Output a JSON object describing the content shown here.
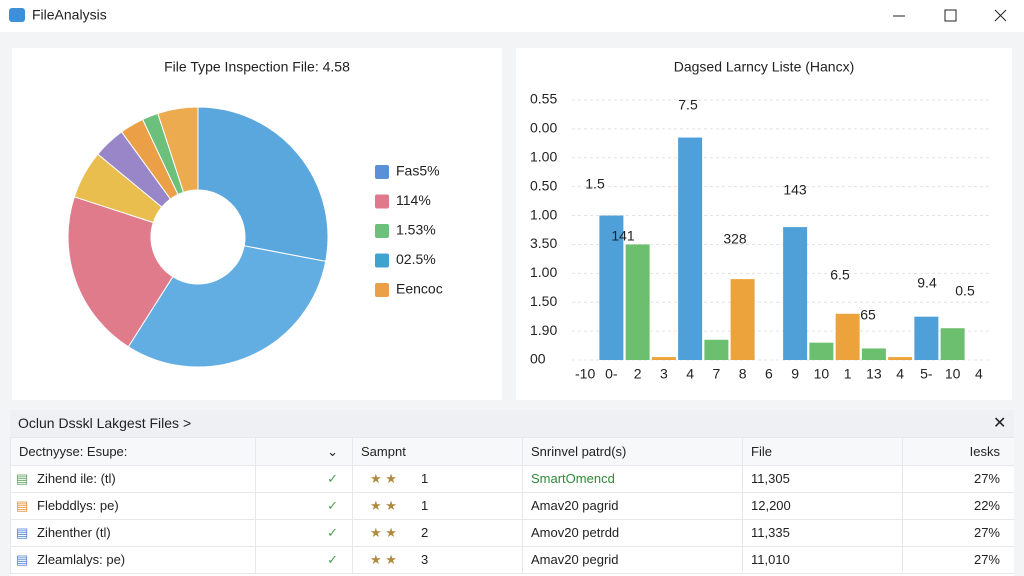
{
  "window": {
    "title": "FileAnalysis"
  },
  "pie_chart": {
    "type": "pie",
    "title": "File Type Inspection File: 4.58",
    "values": [
      28,
      31,
      21,
      6,
      4,
      3,
      2,
      5
    ],
    "colors": [
      "#5aa7de",
      "#62ade2",
      "#e07b8b",
      "#e9bd4e",
      "#9886c9",
      "#eba048",
      "#6dc07b",
      "#ecab4e"
    ],
    "legend": [
      {
        "label": "Fas5%",
        "color": "#5b8fd8"
      },
      {
        "label": "114%",
        "color": "#df7a8c"
      },
      {
        "label": "1.53%",
        "color": "#6dc07b"
      },
      {
        "label": "02.5%",
        "color": "#3ea3cf"
      },
      {
        "label": "Eencoc",
        "color": "#eba048"
      }
    ]
  },
  "bar_chart": {
    "type": "bar",
    "title": "Dagsed Larncy Liste (Hancx)",
    "categories": [
      "-10",
      "0-",
      "2",
      "3",
      "4",
      "7",
      "8",
      "6",
      "9",
      "10",
      "1",
      "13",
      "4",
      "5-",
      "10",
      "4"
    ],
    "values": [
      null,
      5.0,
      4.0,
      0.1,
      7.7,
      0.7,
      2.8,
      null,
      4.6,
      0.6,
      1.6,
      0.4,
      0.1,
      1.5,
      1.1,
      null
    ],
    "colors": [
      null,
      "#4f9fd8",
      "#6cbf6e",
      "#eca33c",
      "#4f9fd8",
      "#6cbf6e",
      "#eca33c",
      null,
      "#4f9fd8",
      "#6cbf6e",
      "#eca33c",
      "#6cbf6e",
      "#eca33c",
      "#4f9fd8",
      "#6cbf6e",
      null
    ],
    "ylim": [
      0,
      9
    ],
    "yticks": [
      {
        "value": 0,
        "label": "00"
      },
      {
        "value": 1,
        "label": "1.90"
      },
      {
        "value": 2,
        "label": "1.50"
      },
      {
        "value": 3,
        "label": "1.00"
      },
      {
        "value": 4,
        "label": "3.50"
      },
      {
        "value": 5,
        "label": "1.00"
      },
      {
        "value": 6,
        "label": "0.50"
      },
      {
        "value": 7,
        "label": "1.00"
      },
      {
        "value": 8,
        "label": "0.00"
      },
      {
        "value": 9,
        "label": "0.55"
      }
    ],
    "grid": true,
    "annotations": [
      "1.5",
      "141",
      "7.5",
      "328",
      "143",
      "6.5",
      "65",
      "9.4",
      "0.5"
    ]
  },
  "table": {
    "title": "Oclun Dsskl Lakgest Files >",
    "columns": [
      "Dectnyyse: Esupe:",
      "Sampnt",
      "Snrinvel patrd(s)",
      "File",
      "Iesks"
    ],
    "rows": [
      [
        "Zihend ile: (tl)",
        "1",
        "SmartOmencd",
        "11,305",
        "27%"
      ],
      [
        "Flebddlys: pe)",
        "1",
        "Amav20 pagrid",
        "12,200",
        "22%"
      ],
      [
        "Zihenther (tl)",
        "2",
        "Amov20 petrdd",
        "11,335",
        "27%"
      ],
      [
        "Zleamlalys: pe)",
        "3",
        "Amav20 pegrid",
        "11,010",
        "27%"
      ]
    ]
  }
}
